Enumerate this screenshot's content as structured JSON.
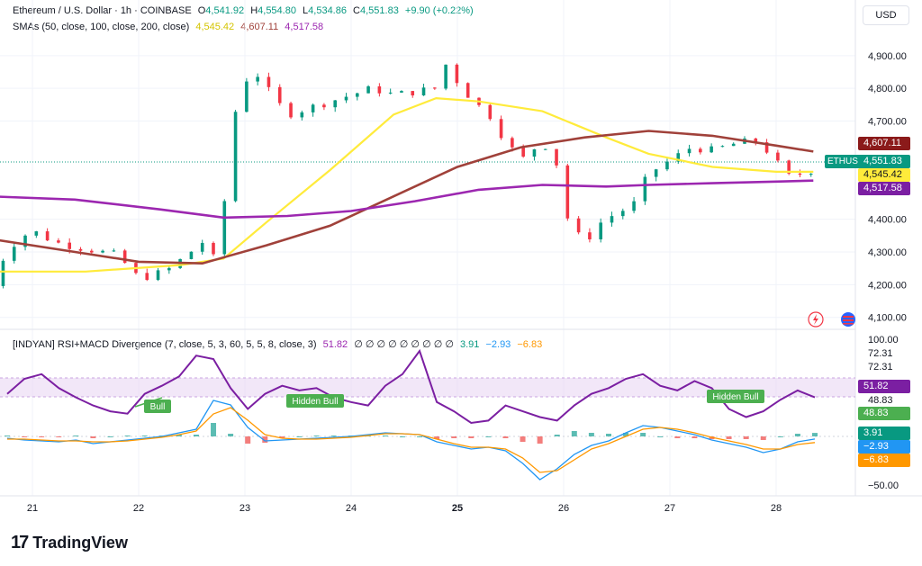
{
  "header": {
    "symbol": "Ethereum / U.S. Dollar · 1h · COINBASE",
    "o_label": "O",
    "o": "4,541.92",
    "h_label": "H",
    "h": "4,554.80",
    "l_label": "L",
    "l": "4,534.86",
    "c_label": "C",
    "c": "4,551.83",
    "change": "+9.90 (+0.22%)",
    "sma_title": "SMAs (50, close, 100, close, 200, close)",
    "sma50": "4,545.42",
    "sma100": "4,607.11",
    "sma200": "4,517.58"
  },
  "currency": "USD",
  "indicator": {
    "title": "[INDYAN] RSI+MACD Divergence (7, close, 5, 3, 60, 5, 5, 8, close, 3)",
    "rsi_value": "51.82",
    "slots": "∅ ∅ ∅ ∅ ∅ ∅ ∅ ∅ ∅",
    "macd_hist": "3.91",
    "macd_line": "−2.93",
    "macd_signal": "−6.83"
  },
  "price_labels": {
    "ethusd_tag": "ETHUSD",
    "last": "4,551.83",
    "sma100": "4,607.11",
    "sma50": "4,545.42",
    "sma200": "4,517.58"
  },
  "osc_labels": {
    "rsi": "51.82",
    "lvl": "48.83",
    "hist": "3.91",
    "macd": "−2.93",
    "signal": "−6.83"
  },
  "brand": "TradingView",
  "colors": {
    "up": "#089981",
    "down": "#f23645",
    "sma50": "#ffeb3b",
    "sma100": "#a0413a",
    "sma200": "#9c27b0",
    "rsi": "#7b1fa2",
    "macd": "#2196f3",
    "signal": "#ff9800"
  },
  "chart_data": [
    {
      "type": "candlestick",
      "title": "Ethereum / U.S. Dollar · 1h · COINBASE",
      "x_ticks": [
        "21",
        "22",
        "23",
        "24",
        "25",
        "26",
        "27",
        "28"
      ],
      "y_ticks": [
        "4,100.00",
        "4,200.00",
        "4,300.00",
        "4,400.00",
        "4,700.00",
        "4,800.00",
        "4,900.00"
      ],
      "ylim": [
        4080,
        4960
      ],
      "grid": true,
      "series": [
        {
          "name": "ETHUSD",
          "points": [
            [
              20.6,
              4180
            ],
            [
              20.75,
              4300
            ],
            [
              20.9,
              4350
            ],
            [
              21.05,
              4360
            ],
            [
              21.2,
              4330
            ],
            [
              21.35,
              4320
            ],
            [
              21.5,
              4310
            ],
            [
              21.65,
              4300
            ],
            [
              21.8,
              4290
            ],
            [
              22.0,
              4220
            ],
            [
              22.15,
              4230
            ],
            [
              22.3,
              4250
            ],
            [
              22.45,
              4290
            ],
            [
              22.6,
              4330
            ],
            [
              22.75,
              4260
            ],
            [
              22.85,
              4600
            ],
            [
              22.95,
              4810
            ],
            [
              23.1,
              4850
            ],
            [
              23.25,
              4780
            ],
            [
              23.4,
              4720
            ],
            [
              23.6,
              4740
            ],
            [
              23.8,
              4760
            ],
            [
              24.0,
              4780
            ],
            [
              24.2,
              4800
            ],
            [
              24.4,
              4780
            ],
            [
              24.6,
              4790
            ],
            [
              24.8,
              4800
            ],
            [
              24.9,
              4880
            ],
            [
              25.0,
              4820
            ],
            [
              25.15,
              4760
            ],
            [
              25.3,
              4720
            ],
            [
              25.45,
              4640
            ],
            [
              25.6,
              4580
            ],
            [
              25.8,
              4640
            ],
            [
              25.95,
              4560
            ],
            [
              26.05,
              4380
            ],
            [
              26.2,
              4330
            ],
            [
              26.35,
              4390
            ],
            [
              26.5,
              4420
            ],
            [
              26.65,
              4440
            ],
            [
              26.8,
              4540
            ],
            [
              27.0,
              4580
            ],
            [
              27.2,
              4620
            ],
            [
              27.4,
              4610
            ],
            [
              27.6,
              4630
            ],
            [
              27.8,
              4640
            ],
            [
              27.95,
              4600
            ],
            [
              28.1,
              4530
            ],
            [
              28.25,
              4540
            ],
            [
              28.35,
              4552
            ]
          ]
        },
        {
          "name": "SMA 50",
          "points": [
            [
              20.6,
              4240
            ],
            [
              21.5,
              4240
            ],
            [
              22.4,
              4260
            ],
            [
              22.8,
              4280
            ],
            [
              23.2,
              4390
            ],
            [
              23.8,
              4550
            ],
            [
              24.4,
              4720
            ],
            [
              24.8,
              4770
            ],
            [
              25.2,
              4760
            ],
            [
              25.8,
              4730
            ],
            [
              26.4,
              4650
            ],
            [
              26.8,
              4600
            ],
            [
              27.4,
              4560
            ],
            [
              28.0,
              4545
            ],
            [
              28.35,
              4545
            ]
          ]
        },
        {
          "name": "SMA 100",
          "points": [
            [
              20.6,
              4340
            ],
            [
              21.4,
              4300
            ],
            [
              22.0,
              4270
            ],
            [
              22.6,
              4265
            ],
            [
              23.2,
              4320
            ],
            [
              23.8,
              4380
            ],
            [
              24.4,
              4470
            ],
            [
              25.0,
              4560
            ],
            [
              25.6,
              4620
            ],
            [
              26.2,
              4650
            ],
            [
              26.8,
              4670
            ],
            [
              27.4,
              4655
            ],
            [
              28.0,
              4625
            ],
            [
              28.35,
              4607
            ]
          ]
        },
        {
          "name": "SMA 200",
          "points": [
            [
              20.6,
              4470
            ],
            [
              21.4,
              4460
            ],
            [
              22.2,
              4430
            ],
            [
              22.8,
              4405
            ],
            [
              23.4,
              4410
            ],
            [
              24.0,
              4425
            ],
            [
              24.6,
              4455
            ],
            [
              25.2,
              4490
            ],
            [
              25.8,
              4505
            ],
            [
              26.4,
              4500
            ],
            [
              26.8,
              4505
            ],
            [
              27.4,
              4510
            ],
            [
              28.0,
              4515
            ],
            [
              28.35,
              4518
            ]
          ]
        }
      ]
    },
    {
      "type": "line",
      "title": "[INDYAN] RSI+MACD Divergence (7, close, 5, 3, 60, 5, 5, 8, close, 3)",
      "y_ticks": [
        "100.00",
        "72.31",
        "72.31",
        "48.83",
        "−50.00"
      ],
      "annotations": [
        "Bull",
        "Hidden Bull",
        "Hidden Bull"
      ],
      "series": [
        {
          "name": "RSI",
          "values": [
            55,
            68,
            72,
            60,
            52,
            45,
            40,
            38,
            55,
            62,
            70,
            88,
            85,
            60,
            42,
            55,
            62,
            58,
            60,
            52,
            48,
            45,
            62,
            72,
            92,
            48,
            40,
            30,
            32,
            45,
            40,
            35,
            32,
            45,
            55,
            60,
            68,
            72,
            62,
            58,
            66,
            60,
            42,
            35,
            40,
            50,
            58,
            52
          ]
        },
        {
          "name": "MACD",
          "values": [
            -2,
            -4,
            -5,
            -6,
            -4,
            -8,
            -6,
            -4,
            -2,
            0,
            4,
            8,
            40,
            35,
            10,
            -5,
            -4,
            -3,
            -2,
            -1,
            0,
            2,
            4,
            3,
            2,
            -6,
            -10,
            -14,
            -12,
            -16,
            -30,
            -48,
            -36,
            -20,
            -10,
            -5,
            4,
            12,
            10,
            6,
            2,
            -4,
            -8,
            -12,
            -18,
            -14,
            -6,
            -2.93
          ]
        },
        {
          "name": "Signal",
          "values": [
            -3,
            -3,
            -4,
            -5,
            -5,
            -6,
            -6,
            -5,
            -3,
            -1,
            2,
            6,
            25,
            32,
            18,
            2,
            -2,
            -3,
            -3,
            -2,
            -1,
            1,
            3,
            3,
            2,
            -3,
            -8,
            -12,
            -12,
            -14,
            -24,
            -40,
            -38,
            -26,
            -14,
            -8,
            0,
            8,
            10,
            8,
            4,
            -1,
            -5,
            -9,
            -14,
            -14,
            -9,
            -6.83
          ]
        }
      ]
    }
  ]
}
